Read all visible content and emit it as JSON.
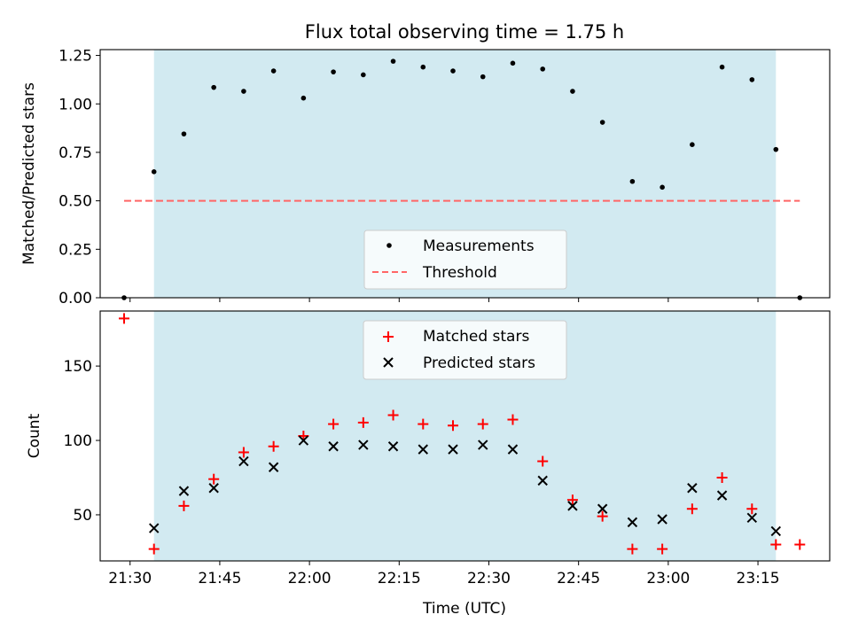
{
  "title": "Flux total observing time = 1.75 h",
  "colors": {
    "band": "#add8e6",
    "measurement": "#000000",
    "threshold": "#ff6666",
    "matched": "#ff0000",
    "predicted": "#000000"
  },
  "chart_data": [
    {
      "type": "scatter",
      "panel": "top",
      "title": "Flux total observing time = 1.75 h",
      "xlabel": "",
      "ylabel": "Matched/Predicted stars",
      "ylim": [
        0,
        1.28
      ],
      "yticks": [
        0.0,
        0.25,
        0.5,
        0.75,
        1.0,
        1.25
      ],
      "ytick_labels": [
        "0.00",
        "0.25",
        "0.50",
        "0.75",
        "1.00",
        "1.25"
      ],
      "shaded_band": [
        "21:34",
        "23:18"
      ],
      "threshold": 0.5,
      "threshold_range": [
        "21:29",
        "23:22"
      ],
      "legend": [
        "Measurements",
        "Threshold"
      ],
      "legend_position": "lower center",
      "series": [
        {
          "name": "Measurements",
          "x": [
            "21:29",
            "21:34",
            "21:39",
            "21:44",
            "21:49",
            "21:54",
            "21:59",
            "22:04",
            "22:09",
            "22:14",
            "22:19",
            "22:24",
            "22:29",
            "22:34",
            "22:39",
            "22:44",
            "22:49",
            "22:54",
            "22:59",
            "23:04",
            "23:09",
            "23:14",
            "23:18",
            "23:22"
          ],
          "values": [
            0.0,
            0.65,
            0.845,
            1.085,
            1.065,
            1.17,
            1.03,
            1.165,
            1.15,
            1.22,
            1.19,
            1.17,
            1.14,
            1.21,
            1.18,
            1.065,
            0.905,
            0.6,
            0.57,
            0.79,
            1.19,
            1.125,
            0.765,
            0.0
          ]
        }
      ]
    },
    {
      "type": "scatter",
      "panel": "bottom",
      "xlabel": "Time (UTC)",
      "ylabel": "Count",
      "ylim": [
        19,
        187
      ],
      "yticks": [
        50,
        100,
        150
      ],
      "ytick_labels": [
        "50",
        "100",
        "150"
      ],
      "xlim": [
        "21:25",
        "23:27"
      ],
      "xticks": [
        "21:30",
        "21:45",
        "22:00",
        "22:15",
        "22:30",
        "22:45",
        "23:00",
        "23:15"
      ],
      "xtick_labels": [
        "21:30",
        "21:45",
        "22:00",
        "22:15",
        "22:30",
        "22:45",
        "23:00",
        "23:15"
      ],
      "shaded_band": [
        "21:34",
        "23:18"
      ],
      "legend": [
        "Matched stars",
        "Predicted stars"
      ],
      "legend_position": "upper center",
      "series": [
        {
          "name": "Matched stars",
          "x": [
            "21:29",
            "21:34",
            "21:39",
            "21:44",
            "21:49",
            "21:54",
            "21:59",
            "22:04",
            "22:09",
            "22:14",
            "22:19",
            "22:24",
            "22:29",
            "22:34",
            "22:39",
            "22:44",
            "22:49",
            "22:54",
            "22:59",
            "23:04",
            "23:09",
            "23:14",
            "23:18",
            "23:22"
          ],
          "values": [
            182,
            27,
            56,
            74,
            92,
            96,
            103,
            111,
            112,
            117,
            111,
            110,
            111,
            114,
            86,
            60,
            49,
            27,
            27,
            54,
            75,
            54,
            30,
            30
          ]
        },
        {
          "name": "Predicted stars",
          "x": [
            "21:34",
            "21:39",
            "21:44",
            "21:49",
            "21:54",
            "21:59",
            "22:04",
            "22:09",
            "22:14",
            "22:19",
            "22:24",
            "22:29",
            "22:34",
            "22:39",
            "22:44",
            "22:49",
            "22:54",
            "22:59",
            "23:04",
            "23:09",
            "23:14",
            "23:18"
          ],
          "values": [
            41,
            66,
            68,
            86,
            82,
            100,
            96,
            97,
            96,
            94,
            94,
            97,
            94,
            73,
            56,
            54,
            45,
            47,
            68,
            63,
            48,
            39
          ]
        }
      ]
    }
  ]
}
